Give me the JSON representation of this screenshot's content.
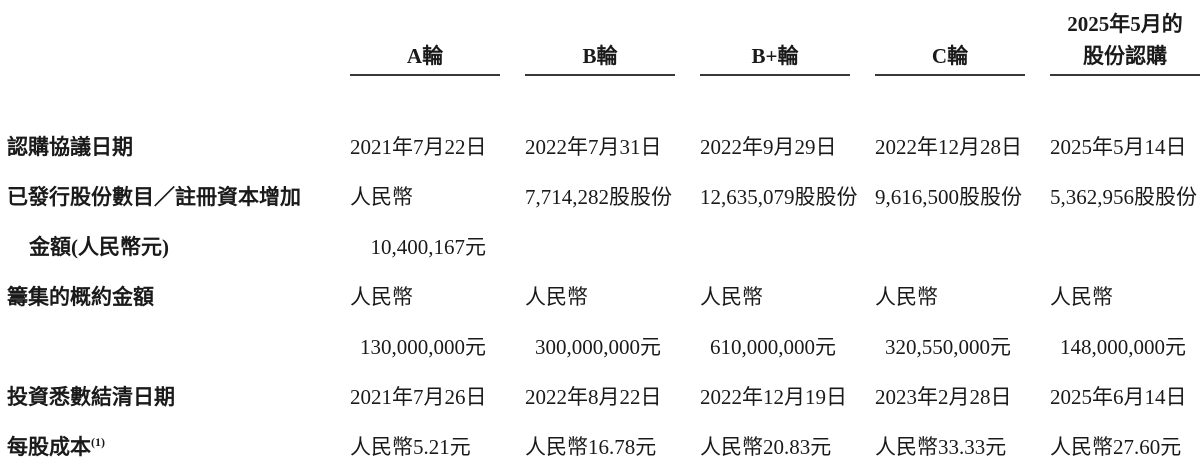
{
  "colors": {
    "text": "#1a1a1a",
    "rule": "#383838",
    "background": "#ffffff"
  },
  "table": {
    "header": {
      "columns": [
        {
          "line1": "",
          "line2": "A輪"
        },
        {
          "line1": "",
          "line2": "B輪"
        },
        {
          "line1": "",
          "line2": "B+輪"
        },
        {
          "line1": "",
          "line2": "C輪"
        },
        {
          "line1": "2025年5月的",
          "line2": "股份認購"
        }
      ]
    },
    "rows": [
      {
        "label": "認購協議日期",
        "values": [
          "2021年7月22日",
          "2022年7月31日",
          "2022年9月29日",
          "2022年12月28日",
          "2025年5月14日"
        ]
      },
      {
        "label_line1": "已發行股份數目／註冊資本增加",
        "label_line2": "金額(人民幣元)",
        "values_line1": [
          "人民幣",
          "7,714,282股股份",
          "12,635,079股股份",
          "9,616,500股股份",
          "5,362,956股股份"
        ],
        "values_line2": [
          "10,400,167元",
          "",
          "",
          "",
          ""
        ]
      },
      {
        "label": "籌集的概約金額",
        "values_line1": [
          "人民幣",
          "人民幣",
          "人民幣",
          "人民幣",
          "人民幣"
        ],
        "values_line2": [
          "130,000,000元",
          "300,000,000元",
          "610,000,000元",
          "320,550,000元",
          "148,000,000元"
        ]
      },
      {
        "label": "投資悉數結清日期",
        "values": [
          "2021年7月26日",
          "2022年8月22日",
          "2022年12月19日",
          "2023年2月28日",
          "2025年6月14日"
        ]
      },
      {
        "label": "每股成本",
        "label_superscript": "(1)",
        "values": [
          "人民幣5.21元",
          "人民幣16.78元",
          "人民幣20.83元",
          "人民幣33.33元",
          "人民幣27.60元"
        ]
      }
    ]
  }
}
